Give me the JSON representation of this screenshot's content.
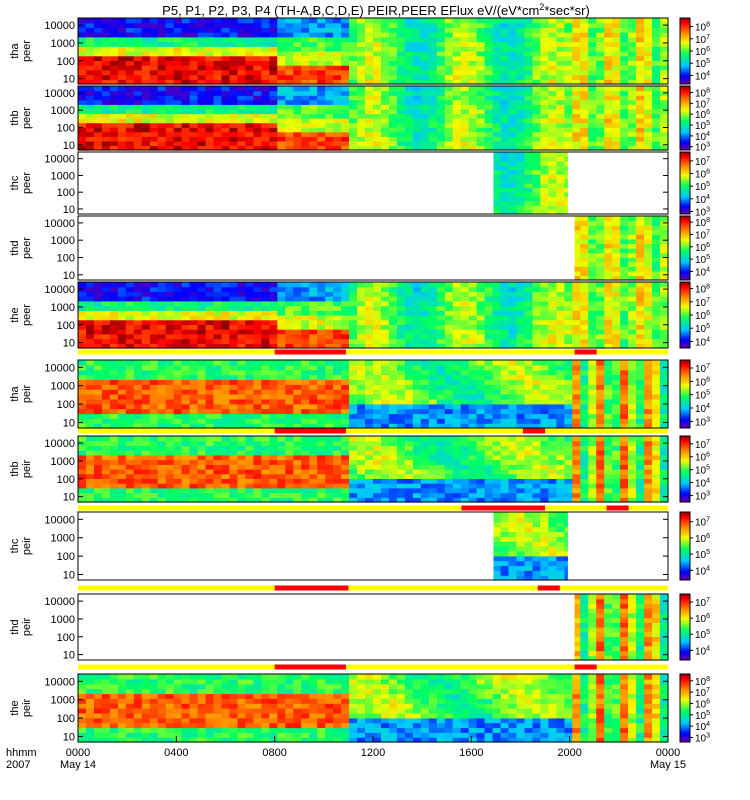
{
  "chart_data": {
    "type": "heatmap",
    "title": "P5, P1, P2, P3, P4 (TH-A,B,C,D,E) PEIR,PEER EFlux eV/(eV*cm^2*sec*sr)",
    "title_main": "P5, P1, P2, P3, P4 (TH-A,B,C,D,E) PEIR,PEER EFlux eV/(eV*cm",
    "title_sup": "2",
    "title_tail": "*sec*sr)",
    "xlabel": "hhmm",
    "year": "2007",
    "x_tick_labels": [
      "0000",
      "0400",
      "0800",
      "1200",
      "1600",
      "2000",
      "0000"
    ],
    "x_date_labels": [
      "May 14",
      "May 15"
    ],
    "xlim_hours": [
      0,
      24
    ],
    "y_tick_labels": [
      "10",
      "100",
      "1000",
      "10000"
    ],
    "ylim_eV": [
      5,
      25000
    ],
    "yscale": "log",
    "panels": [
      {
        "probe": "tha",
        "species": "peer",
        "ylabel": "tha peer",
        "data_hours": [
          [
            0,
            24
          ]
        ],
        "cbar_exponents": [
          "4",
          "5",
          "6",
          "7",
          "8"
        ],
        "cbar_range_log": [
          3.3,
          8.7
        ]
      },
      {
        "probe": "thb",
        "species": "peer",
        "ylabel": "thb peer",
        "data_hours": [
          [
            0,
            24
          ]
        ],
        "cbar_exponents": [
          "3",
          "4",
          "5",
          "6",
          "7",
          "8"
        ],
        "cbar_range_log": [
          2.7,
          8.6
        ]
      },
      {
        "probe": "thc",
        "species": "peer",
        "ylabel": "thc peer",
        "data_hours": [
          [
            16.9,
            19.9
          ]
        ],
        "cbar_exponents": [
          "3",
          "4",
          "5",
          "6",
          "7"
        ],
        "cbar_range_log": [
          2.8,
          7.7
        ]
      },
      {
        "probe": "thd",
        "species": "peer",
        "ylabel": "thd peer",
        "data_hours": [
          [
            20.2,
            24
          ]
        ],
        "cbar_exponents": [
          "4",
          "5",
          "6",
          "7",
          "8"
        ],
        "cbar_range_log": [
          3.3,
          8.5
        ]
      },
      {
        "probe": "the",
        "species": "peer",
        "ylabel": "the peer",
        "data_hours": [
          [
            0,
            24
          ]
        ],
        "cbar_exponents": [
          "4",
          "5",
          "6",
          "7",
          "8"
        ],
        "cbar_range_log": [
          3.5,
          8.5
        ]
      },
      {
        "probe": "tha",
        "species": "peir",
        "ylabel": "tha peir",
        "data_hours": [
          [
            0,
            24
          ]
        ],
        "cbar_exponents": [
          "3",
          "4",
          "5",
          "6",
          "7"
        ],
        "cbar_range_log": [
          2.5,
          7.6
        ]
      },
      {
        "probe": "thb",
        "species": "peir",
        "ylabel": "thb peir",
        "data_hours": [
          [
            0,
            24
          ]
        ],
        "cbar_exponents": [
          "3",
          "4",
          "5",
          "6",
          "7"
        ],
        "cbar_range_log": [
          2.5,
          7.6
        ]
      },
      {
        "probe": "thc",
        "species": "peir",
        "ylabel": "thc peir",
        "data_hours": [
          [
            16.9,
            19.9
          ]
        ],
        "cbar_exponents": [
          "4",
          "5",
          "6",
          "7"
        ],
        "cbar_range_log": [
          3.4,
          7.6
        ]
      },
      {
        "probe": "thd",
        "species": "peir",
        "ylabel": "thd peir",
        "data_hours": [
          [
            20.2,
            24
          ]
        ],
        "cbar_exponents": [
          "4",
          "5",
          "6",
          "7"
        ],
        "cbar_range_log": [
          3.4,
          7.5
        ]
      },
      {
        "probe": "the",
        "species": "peir",
        "ylabel": "the peir",
        "data_hours": [
          [
            0,
            24
          ]
        ],
        "cbar_exponents": [
          "3",
          "4",
          "5",
          "6",
          "7",
          "8"
        ],
        "cbar_range_log": [
          2.6,
          8.6
        ]
      }
    ],
    "mode_bars": [
      {
        "after_panel": 4,
        "red_hours": [
          [
            8.0,
            10.9
          ],
          [
            20.2,
            21.1
          ]
        ]
      },
      {
        "after_panel": 5,
        "red_hours": [
          [
            8.0,
            10.9
          ],
          [
            18.1,
            19.0
          ]
        ]
      },
      {
        "after_panel": 6,
        "red_hours": [
          [
            15.6,
            19.0
          ],
          [
            21.5,
            22.4
          ]
        ]
      },
      {
        "after_panel": 7,
        "red_hours": [
          [
            8.0,
            11.0
          ],
          [
            18.7,
            19.6
          ]
        ]
      },
      {
        "after_panel": 8,
        "red_hours": [
          [
            8.0,
            10.9
          ],
          [
            20.2,
            21.1
          ]
        ]
      }
    ]
  }
}
